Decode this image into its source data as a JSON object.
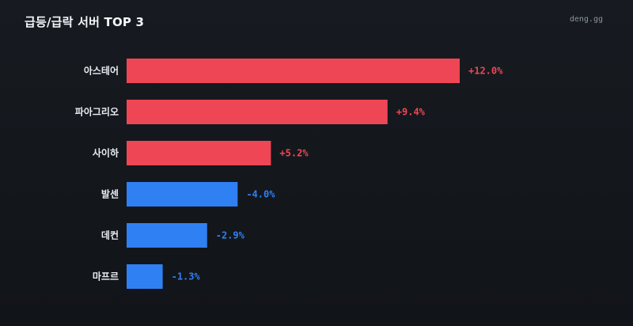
{
  "header": {
    "title": "급등/급락 서버 TOP 3",
    "brand": "deng.gg"
  },
  "colors": {
    "positive": "#ef4655",
    "negative": "#2f80f3",
    "label": "#e9edf3"
  },
  "chart_data": {
    "type": "bar",
    "orientation": "horizontal",
    "title": "급등/급락 서버 TOP 3",
    "xlabel": "",
    "ylabel": "",
    "value_unit": "%",
    "grid": false,
    "legend": "none",
    "categories": [
      "아스테어",
      "파아그리오",
      "사이하",
      "발센",
      "데컨",
      "마프르"
    ],
    "values": [
      12.0,
      9.4,
      5.2,
      -4.0,
      -2.9,
      -1.3
    ],
    "value_labels": [
      "+12.0%",
      "+9.4%",
      "+5.2%",
      "-4.0%",
      "-2.9%",
      "-1.3%"
    ]
  }
}
